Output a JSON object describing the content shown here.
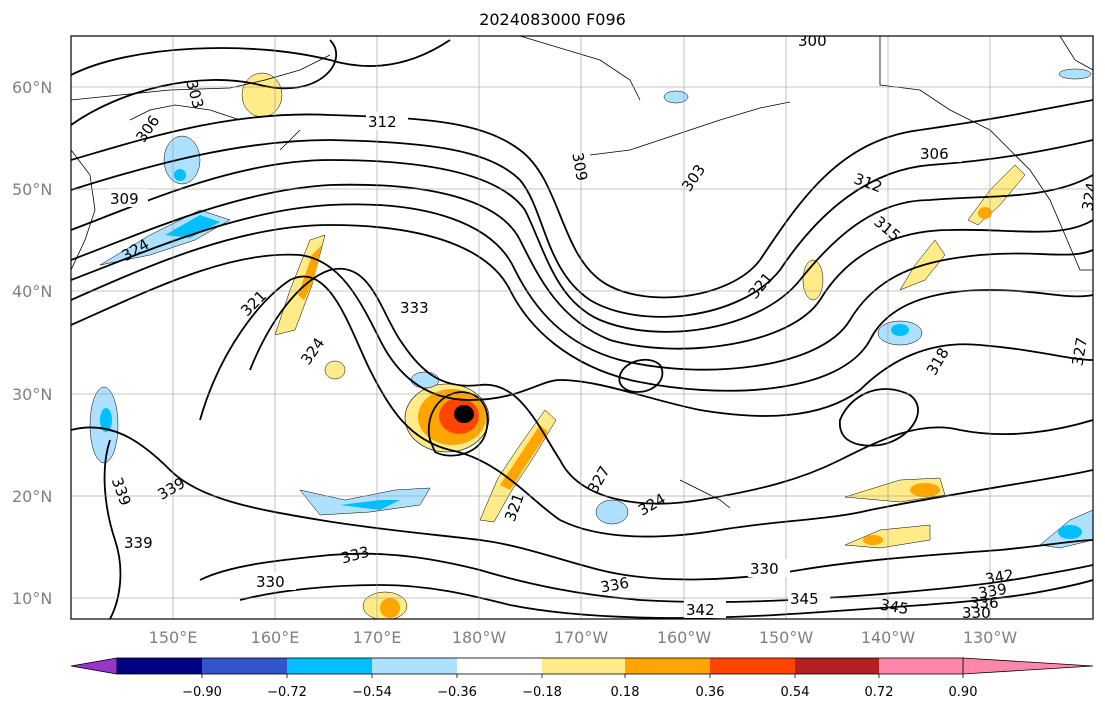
{
  "title": "2024083000 F096",
  "map": {
    "lat_ticks": [
      "60°N",
      "50°N",
      "40°N",
      "30°N",
      "20°N",
      "10°N"
    ],
    "lon_ticks": [
      "150°E",
      "160°E",
      "170°E",
      "180°W",
      "170°W",
      "160°W",
      "150°W",
      "140°W",
      "130°W"
    ],
    "contour_labels": [
      "300",
      "306",
      "303",
      "312",
      "309",
      "309",
      "303",
      "306",
      "312",
      "315",
      "321",
      "321",
      "333",
      "324",
      "318",
      "327",
      "324",
      "339",
      "339",
      "339",
      "333",
      "330",
      "336",
      "330",
      "342",
      "345",
      "345",
      "342",
      "339",
      "336",
      "330",
      "324",
      "327",
      "321",
      "324"
    ],
    "grid": true
  },
  "colorbar": {
    "colors": [
      "#9933cc",
      "#000080",
      "#3355cc",
      "#00bfff",
      "#aee0ff",
      "#ffffff",
      "#ffeb88",
      "#ffa500",
      "#ff4500",
      "#b22222",
      "#ff88aa"
    ],
    "labels": [
      "−0.90",
      "−0.72",
      "−0.54",
      "−0.36",
      "−0.18",
      "0.18",
      "0.36",
      "0.54",
      "0.72",
      "0.90"
    ]
  }
}
